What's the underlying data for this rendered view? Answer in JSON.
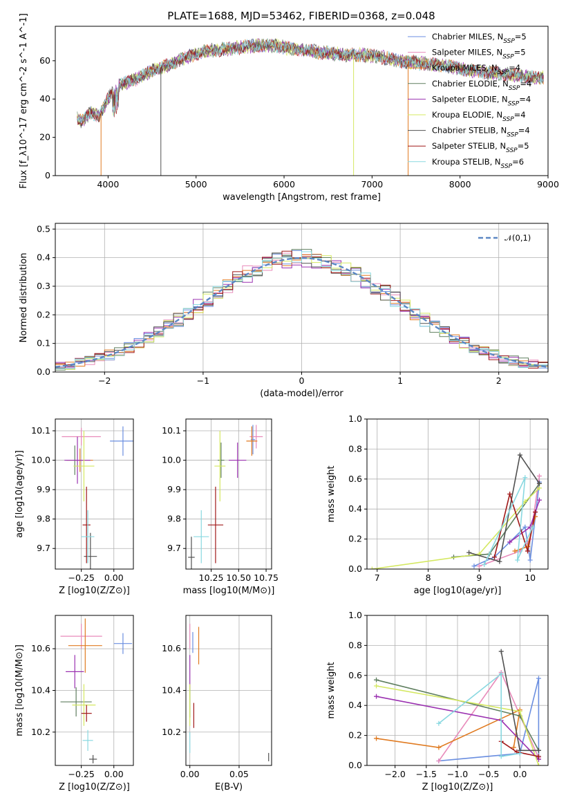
{
  "figure": {
    "title": "PLATE=1688, MJD=53462, FIBERID=0368, z=0.048"
  },
  "colors": [
    "#6a8ee0",
    "#e88aba",
    "#e07a20",
    "#5e7e5e",
    "#9a30b0",
    "#d4e860",
    "#505050",
    "#a01818",
    "#88d8e0"
  ],
  "chart_data": [
    {
      "id": "spectrum",
      "type": "line",
      "xlabel": "wavelength [Angstrom, rest frame]",
      "ylabel": "Flux [f_λ10^-17 erg cm^-2 s^-1 A^-1]",
      "xlim": [
        3400,
        9000
      ],
      "ylim": [
        0,
        78
      ],
      "xticks": [
        4000,
        5000,
        6000,
        7000,
        8000,
        9000
      ],
      "yticks": [
        0,
        20,
        40,
        60
      ],
      "grid": false,
      "legend_position": "top-right",
      "series": [
        {
          "name": "Chabrier MILES, N_SSP=5"
        },
        {
          "name": "Salpeter MILES, N_SSP=5"
        },
        {
          "name": "Kroupa MILES, N_SSP=4"
        },
        {
          "name": "Chabrier ELODIE, N_SSP=4"
        },
        {
          "name": "Salpeter ELODIE, N_SSP=4"
        },
        {
          "name": "Kroupa ELODIE, N_SSP=4"
        },
        {
          "name": "Chabrier STELIB, N_SSP=4"
        },
        {
          "name": "Salpeter STELIB, N_SSP=5"
        },
        {
          "name": "Kroupa STELIB, N_SSP=6"
        }
      ],
      "continuum": {
        "x": [
          3650,
          3700,
          3800,
          3900,
          4000,
          4100,
          4300,
          4500,
          4700,
          4900,
          5100,
          5300,
          5500,
          5700,
          5900,
          6100,
          6300,
          6500,
          6700,
          6900,
          7100,
          7300,
          7500,
          7700,
          7900,
          8100,
          8300,
          8500,
          8700,
          8900
        ],
        "y": [
          30,
          28,
          33,
          31,
          40,
          47,
          50,
          55,
          58,
          62,
          65,
          66,
          67,
          68,
          68,
          66,
          65,
          64,
          63,
          63,
          62,
          60,
          59,
          58,
          57,
          55,
          54,
          53,
          52,
          51
        ]
      },
      "spikes": [
        {
          "x": 3920,
          "y": 0,
          "series": 2
        },
        {
          "x": 4600,
          "y": 0,
          "series": 6
        },
        {
          "x": 6790,
          "y": 0,
          "series": 5
        },
        {
          "x": 7410,
          "y": 0,
          "series": 2
        }
      ]
    },
    {
      "id": "residuals",
      "type": "line",
      "xlabel": "(data-model)/error",
      "ylabel": "Normed distribution",
      "xlim": [
        -2.5,
        2.5
      ],
      "ylim": [
        0,
        0.52
      ],
      "xticks": [
        -2,
        -1,
        0,
        1,
        2
      ],
      "yticks": [
        0.0,
        0.1,
        0.2,
        0.3,
        0.4,
        0.5
      ],
      "grid": true,
      "reference_curve": {
        "name": "𝒩(0,1)",
        "mean": 0,
        "sigma": 1,
        "style": "dashed"
      },
      "legend_position": "top-right"
    },
    {
      "id": "age-vs-Z",
      "type": "scatter",
      "xlabel": "Z [log10(Z/Z⊙)]",
      "ylabel": "age [log10(age/yr)]",
      "xlim": [
        -0.45,
        0.15
      ],
      "ylim": [
        9.63,
        10.14
      ],
      "xticks": [
        -0.25,
        0.0
      ],
      "yticks": [
        9.7,
        9.8,
        9.9,
        10.0,
        10.1
      ],
      "grid": true,
      "points": [
        {
          "x": 0.07,
          "y": 10.065,
          "xerr": 0.1,
          "yerr": 0.05,
          "series": 0
        },
        {
          "x": -0.25,
          "y": 10.08,
          "xerr": 0.15,
          "yerr": 0.03,
          "series": 1
        },
        {
          "x": -0.26,
          "y": 10.0,
          "xerr": 0.1,
          "yerr": 0.04,
          "series": 2
        },
        {
          "x": -0.3,
          "y": 10.0,
          "xerr": 0.07,
          "yerr": 0.05,
          "series": 3
        },
        {
          "x": -0.28,
          "y": 10.0,
          "xerr": 0.1,
          "yerr": 0.08,
          "series": 4
        },
        {
          "x": -0.23,
          "y": 9.98,
          "xerr": 0.08,
          "yerr": 0.12,
          "series": 5
        },
        {
          "x": -0.18,
          "y": 9.673,
          "xerr": 0.05,
          "yerr": 0.08,
          "series": 6
        },
        {
          "x": -0.21,
          "y": 9.78,
          "xerr": 0.03,
          "yerr": 0.13,
          "series": 7
        },
        {
          "x": -0.2,
          "y": 9.74,
          "xerr": 0.05,
          "yerr": 0.09,
          "series": 8
        }
      ]
    },
    {
      "id": "age-vs-mass",
      "type": "scatter",
      "xlabel": "mass [log10(M/M⊙)]",
      "ylabel": "",
      "xlim": [
        10.02,
        10.8
      ],
      "ylim": [
        9.63,
        10.14
      ],
      "xticks": [
        10.25,
        10.5,
        10.75
      ],
      "yticks": [
        9.7,
        9.8,
        9.9,
        10.0,
        10.1
      ],
      "grid": true,
      "points": [
        {
          "x": 10.63,
          "y": 10.07,
          "xerr": 0.02,
          "yerr": 0.05,
          "series": 0
        },
        {
          "x": 10.66,
          "y": 10.08,
          "xerr": 0.06,
          "yerr": 0.04,
          "series": 1
        },
        {
          "x": 10.62,
          "y": 10.065,
          "xerr": 0.05,
          "yerr": 0.05,
          "series": 2
        },
        {
          "x": 10.34,
          "y": 10.0,
          "xerr": 0.03,
          "yerr": 0.06,
          "series": 3
        },
        {
          "x": 10.49,
          "y": 10.0,
          "xerr": 0.08,
          "yerr": 0.06,
          "series": 4
        },
        {
          "x": 10.33,
          "y": 9.98,
          "xerr": 0.05,
          "yerr": 0.12,
          "series": 5
        },
        {
          "x": 10.07,
          "y": 9.67,
          "xerr": 0.03,
          "yerr": 0.07,
          "series": 6
        },
        {
          "x": 10.29,
          "y": 9.78,
          "xerr": 0.07,
          "yerr": 0.13,
          "series": 7
        },
        {
          "x": 10.16,
          "y": 9.74,
          "xerr": 0.07,
          "yerr": 0.09,
          "series": 8
        }
      ]
    },
    {
      "id": "mass-weight-vs-age",
      "type": "line",
      "xlabel": "age [log10(age/yr)]",
      "ylabel": "mass weight",
      "xlim": [
        6.8,
        10.35
      ],
      "ylim": [
        0.0,
        1.0
      ],
      "xticks": [
        7,
        8,
        9,
        10
      ],
      "yticks": [
        0.0,
        0.2,
        0.4,
        0.6,
        0.8,
        1.0
      ],
      "grid": true,
      "series": [
        {
          "series": 0,
          "x": [
            8.9,
            9.3,
            9.9,
            10.0,
            10.18
          ],
          "y": [
            0.02,
            0.08,
            0.28,
            0.06,
            0.58
          ]
        },
        {
          "series": 1,
          "x": [
            9.0,
            9.8,
            10.0,
            10.18
          ],
          "y": [
            0.02,
            0.12,
            0.2,
            0.62
          ]
        },
        {
          "series": 2,
          "x": [
            9.7,
            9.95,
            10.1
          ],
          "y": [
            0.12,
            0.15,
            0.35
          ]
        },
        {
          "series": 3,
          "x": [
            8.5,
            9.2,
            10.18
          ],
          "y": [
            0.08,
            0.1,
            0.57
          ]
        },
        {
          "series": 4,
          "x": [
            9.6,
            10.0,
            10.18
          ],
          "y": [
            0.18,
            0.28,
            0.46
          ]
        },
        {
          "series": 5,
          "x": [
            6.9,
            9.0,
            9.9,
            10.18
          ],
          "y": [
            0.0,
            0.1,
            0.45,
            0.54
          ]
        },
        {
          "series": 6,
          "x": [
            8.8,
            9.4,
            9.8,
            10.18
          ],
          "y": [
            0.11,
            0.05,
            0.76,
            0.57
          ]
        },
        {
          "series": 7,
          "x": [
            9.3,
            9.6,
            9.95,
            10.1
          ],
          "y": [
            0.08,
            0.5,
            0.12,
            0.38
          ]
        },
        {
          "series": 8,
          "x": [
            9.1,
            9.9,
            9.75,
            10.05
          ],
          "y": [
            0.03,
            0.61,
            0.06,
            0.28
          ]
        }
      ]
    },
    {
      "id": "mass-vs-Z",
      "type": "scatter",
      "xlabel": "Z [log10(Z/Z⊙)]",
      "ylabel": "mass [log10(M/M⊙)]",
      "xlim": [
        -0.45,
        0.15
      ],
      "ylim": [
        10.04,
        10.76
      ],
      "xticks": [
        -0.25,
        0.0
      ],
      "yticks": [
        10.2,
        10.4,
        10.6
      ],
      "grid": true,
      "points": [
        {
          "x": 0.07,
          "y": 10.625,
          "xerr": 0.07,
          "yerr": 0.05,
          "series": 0
        },
        {
          "x": -0.25,
          "y": 10.66,
          "xerr": 0.16,
          "yerr": 0.06,
          "series": 1
        },
        {
          "x": -0.22,
          "y": 10.615,
          "xerr": 0.13,
          "yerr": 0.13,
          "series": 2
        },
        {
          "x": -0.29,
          "y": 10.345,
          "xerr": 0.12,
          "yerr": 0.07,
          "series": 3
        },
        {
          "x": -0.3,
          "y": 10.49,
          "xerr": 0.07,
          "yerr": 0.08,
          "series": 4
        },
        {
          "x": -0.23,
          "y": 10.33,
          "xerr": 0.09,
          "yerr": 0.1,
          "series": 5
        },
        {
          "x": -0.16,
          "y": 10.07,
          "xerr": 0.03,
          "yerr": 0.02,
          "series": 6
        },
        {
          "x": -0.21,
          "y": 10.29,
          "xerr": 0.04,
          "yerr": 0.04,
          "series": 7
        },
        {
          "x": -0.2,
          "y": 10.16,
          "xerr": 0.04,
          "yerr": 0.05,
          "series": 8
        }
      ]
    },
    {
      "id": "mass-vs-EBV",
      "type": "scatter",
      "xlabel": "E(B-V)",
      "ylabel": "",
      "xlim": [
        -0.004,
        0.083
      ],
      "ylim": [
        10.04,
        10.76
      ],
      "xticks": [
        0.0,
        0.05
      ],
      "yticks": [
        10.2,
        10.4,
        10.6
      ],
      "grid": true,
      "points": [
        {
          "x": 0.003,
          "y": 10.63,
          "xerr": 0.0,
          "yerr": 0.05,
          "series": 0
        },
        {
          "x": 0.0,
          "y": 10.66,
          "xerr": 0.0,
          "yerr": 0.06,
          "series": 1
        },
        {
          "x": 0.009,
          "y": 10.615,
          "xerr": 0.0,
          "yerr": 0.09,
          "series": 2
        },
        {
          "x": 0.0,
          "y": 10.34,
          "xerr": 0.0,
          "yerr": 0.07,
          "series": 3
        },
        {
          "x": 0.0,
          "y": 10.49,
          "xerr": 0.0,
          "yerr": 0.08,
          "series": 4
        },
        {
          "x": 0.0,
          "y": 10.33,
          "xerr": 0.0,
          "yerr": 0.1,
          "series": 5
        },
        {
          "x": 0.08,
          "y": 10.08,
          "xerr": 0.0,
          "yerr": 0.02,
          "series": 6
        },
        {
          "x": 0.004,
          "y": 10.28,
          "xerr": 0.0,
          "yerr": 0.06,
          "series": 7
        },
        {
          "x": 0.0,
          "y": 10.15,
          "xerr": 0.0,
          "yerr": 0.05,
          "series": 8
        }
      ]
    },
    {
      "id": "mass-weight-vs-Z",
      "type": "line",
      "xlabel": "Z [log10(Z/Z⊙)]",
      "ylabel": "mass weight",
      "xlim": [
        -2.45,
        0.45
      ],
      "ylim": [
        0.0,
        1.0
      ],
      "xticks": [
        -2.0,
        -1.5,
        -1.0,
        -0.5,
        0.0
      ],
      "yticks": [
        0.0,
        0.2,
        0.4,
        0.6,
        0.8,
        1.0
      ],
      "grid": true,
      "series": [
        {
          "series": 0,
          "x": [
            -1.3,
            0.0,
            0.3,
            0.3
          ],
          "y": [
            0.03,
            0.08,
            0.58,
            0.06
          ]
        },
        {
          "series": 1,
          "x": [
            -1.3,
            -0.3,
            0.3
          ],
          "y": [
            0.03,
            0.62,
            0.05
          ]
        },
        {
          "series": 2,
          "x": [
            -2.3,
            -1.3,
            0.0,
            -0.1
          ],
          "y": [
            0.18,
            0.12,
            0.37,
            0.12
          ]
        },
        {
          "series": 3,
          "x": [
            -2.3,
            0.0,
            0.3
          ],
          "y": [
            0.57,
            0.33,
            0.1
          ]
        },
        {
          "series": 4,
          "x": [
            -2.3,
            -0.3,
            0.3
          ],
          "y": [
            0.46,
            0.3,
            0.04
          ]
        },
        {
          "series": 5,
          "x": [
            -2.3,
            0.0,
            0.3
          ],
          "y": [
            0.53,
            0.36,
            0.0
          ]
        },
        {
          "series": 6,
          "x": [
            -0.3,
            0.0,
            0.3
          ],
          "y": [
            0.76,
            0.1,
            0.1
          ]
        },
        {
          "series": 7,
          "x": [
            -0.3,
            -0.05,
            0.3
          ],
          "y": [
            0.16,
            0.09,
            0.06
          ]
        },
        {
          "series": 8,
          "x": [
            -1.3,
            -0.3,
            -0.3,
            0.0
          ],
          "y": [
            0.28,
            0.61,
            0.06,
            0.08
          ]
        }
      ]
    }
  ]
}
